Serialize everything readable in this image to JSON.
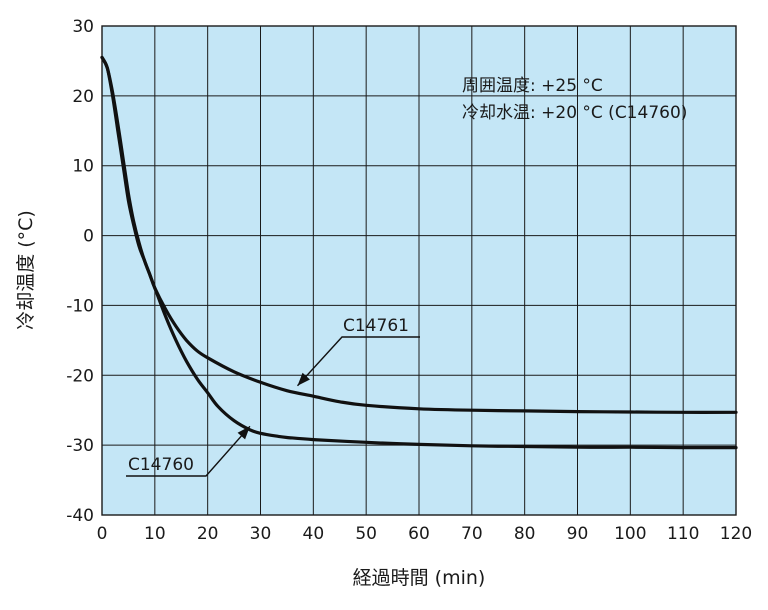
{
  "chart_data": {
    "type": "line",
    "xlabel": "経過時間 (min)",
    "ylabel": "冷却温度 (°C)",
    "xlim": [
      0,
      120
    ],
    "ylim": [
      -40,
      30
    ],
    "x_ticks": [
      0,
      10,
      20,
      30,
      40,
      50,
      60,
      70,
      80,
      90,
      100,
      110,
      120
    ],
    "x_tick_labels": [
      "0",
      "10",
      "20",
      "30",
      "40",
      "50",
      "60",
      "70",
      "80",
      "90",
      "100",
      "110",
      "120"
    ],
    "y_ticks": [
      -40,
      -30,
      -20,
      -10,
      0,
      10,
      20,
      30
    ],
    "y_tick_labels": [
      "-40",
      "-30",
      "-20",
      "-10",
      "0",
      "10",
      "20",
      "30"
    ],
    "grid": true,
    "notes": [
      "周囲温度: +25 °C",
      "冷却水温: +20 °C (C14760)"
    ],
    "series": [
      {
        "name": "C14761",
        "x": [
          0,
          1,
          2,
          3,
          4,
          5,
          6,
          7,
          8,
          9,
          10,
          12,
          14,
          16,
          18,
          20,
          25,
          30,
          35,
          40,
          45,
          50,
          60,
          70,
          80,
          90,
          100,
          110,
          120
        ],
        "y": [
          25.5,
          24,
          20.5,
          16,
          11,
          6,
          2,
          -1,
          -3.5,
          -5.5,
          -7.5,
          -10.5,
          -13,
          -15,
          -16.5,
          -17.5,
          -19.5,
          -21,
          -22.2,
          -23,
          -23.8,
          -24.3,
          -24.8,
          -25,
          -25.1,
          -25.2,
          -25.25,
          -25.3,
          -25.3
        ]
      },
      {
        "name": "C14760",
        "x": [
          0,
          1,
          2,
          3,
          4,
          5,
          6,
          7,
          8,
          9,
          10,
          12,
          14,
          16,
          18,
          20,
          22,
          25,
          28,
          30,
          33,
          35,
          40,
          50,
          60,
          70,
          80,
          90,
          100,
          110,
          120
        ],
        "y": [
          25.5,
          24,
          20,
          15,
          10,
          5,
          1.5,
          -1.5,
          -3.5,
          -5.5,
          -7.5,
          -11.5,
          -15,
          -18,
          -20.5,
          -22.5,
          -24.5,
          -26.5,
          -27.8,
          -28.3,
          -28.7,
          -28.9,
          -29.2,
          -29.6,
          -29.9,
          -30.1,
          -30.2,
          -30.3,
          -30.3,
          -30.35,
          -30.35
        ]
      }
    ],
    "annotations": [
      {
        "text": "C14761",
        "series": "C14761",
        "arrow_to_x": 37,
        "arrow_to_y": -21.5
      },
      {
        "text": "C14760",
        "series": "C14760",
        "arrow_to_x": 28,
        "arrow_to_y": -27.3
      }
    ],
    "colors": {
      "plot_background": "#c4e6f6",
      "grid": "#1a1a1a",
      "line": "#111111",
      "text": "#1a1a1a"
    }
  }
}
